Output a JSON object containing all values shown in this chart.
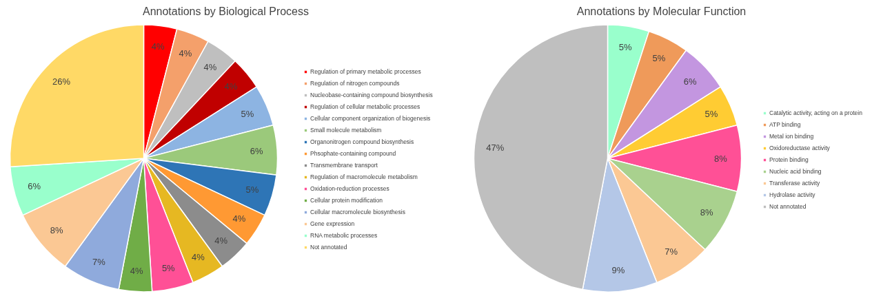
{
  "chart_data": [
    {
      "type": "pie",
      "title": "Annotations by Biological Process",
      "legend": "right",
      "categories": [
        "Regulation of primary metabolic processes",
        "Regulation of nitrogen compounds",
        "Nucleobase-containing compound biosynthesis",
        "Regulation of cellular metabolic processes",
        "Cellular component organization of biogenesis",
        "Small molecule metabolism",
        "Organonitrogen compound biosynthesis",
        "Phsophate-containing compound",
        "Transmembrane transport",
        "Regulation of macromolecule metabolism",
        "Oxidation-reduction processes",
        "Cellular protein modification",
        "Cellular macromolecule biosynthesis",
        "Gene expression",
        "RNA metabolic processes",
        "Not annotated"
      ],
      "values": [
        4,
        4,
        4,
        4,
        5,
        6,
        5,
        4,
        4,
        4,
        5,
        4,
        7,
        8,
        6,
        26
      ],
      "value_labels": [
        "4%",
        "4%",
        "4%",
        "4%",
        "5%",
        "6%",
        "5%",
        "4%",
        "4%",
        "4%",
        "5%",
        "4%",
        "7%",
        "8%",
        "6%",
        "26%"
      ],
      "colors": [
        "#ff0000",
        "#f4a06b",
        "#bfbfbf",
        "#c00000",
        "#8db4e2",
        "#9bc97b",
        "#2e75b6",
        "#ff9933",
        "#8c8c8c",
        "#e6b822",
        "#ff5096",
        "#70ad47",
        "#8faadc",
        "#fbc894",
        "#99ffcc",
        "#ffd966"
      ]
    },
    {
      "type": "pie",
      "title": "Annotations by Molecular Function",
      "legend": "right",
      "categories": [
        "Catalytic activity, acting on a protein",
        "ATP binding",
        "Metal ion binding",
        "Oxidoreductase activity",
        "Protein binding",
        "Nucleic acid binding",
        "Transferase activity",
        "Hydrolase activity",
        "Not annotated"
      ],
      "values": [
        5,
        5,
        6,
        5,
        8,
        8,
        7,
        9,
        47
      ],
      "value_labels": [
        "5%",
        "5%",
        "6%",
        "5%",
        "8%",
        "8%",
        "7%",
        "9%",
        "47%"
      ],
      "colors": [
        "#99ffcc",
        "#ef9a5a",
        "#c396e0",
        "#ffcc33",
        "#ff5096",
        "#a9d18e",
        "#fbc894",
        "#b4c7e7",
        "#bfbfbf"
      ]
    }
  ]
}
